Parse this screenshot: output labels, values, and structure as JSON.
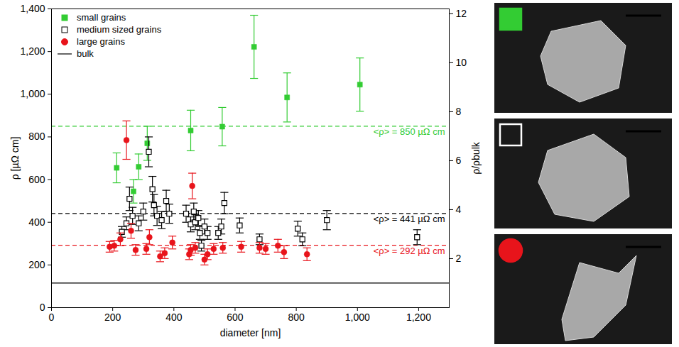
{
  "chart_data": {
    "type": "scatter",
    "xlabel": "diameter [nm]",
    "ylabel": "ρ [µΩ cm]",
    "y2label": "ρ/ρbulk",
    "xlim": [
      0,
      1300
    ],
    "xticks": [
      0,
      200,
      400,
      600,
      800,
      1000,
      1200
    ],
    "ylim": [
      0,
      1400
    ],
    "yticks": [
      0,
      200,
      400,
      600,
      800,
      1000,
      1200,
      1400
    ],
    "y2lim": [
      0,
      12.2
    ],
    "y2ticks": [
      2,
      4,
      6,
      8,
      10,
      12
    ],
    "legend": "top-left",
    "series": [
      {
        "name": "small grains",
        "color": "#33cc33",
        "marker": "square",
        "x": [
          213,
          268,
          285,
          313,
          455,
          558,
          662,
          770,
          1008
        ],
        "values": [
          655,
          545,
          660,
          770,
          830,
          848,
          1222,
          985,
          1045
        ],
        "error": [
          70,
          55,
          60,
          80,
          95,
          90,
          148,
          115,
          125
        ]
      },
      {
        "name": "medium sized grains",
        "color": "#000000",
        "marker": "open square",
        "x": [
          230,
          245,
          255,
          265,
          285,
          300,
          318,
          330,
          335,
          345,
          360,
          375,
          385,
          440,
          455,
          465,
          470,
          480,
          485,
          490,
          500,
          510,
          545,
          555,
          565,
          615,
          680,
          805,
          820,
          900,
          1195
        ],
        "values": [
          355,
          395,
          510,
          430,
          395,
          450,
          730,
          555,
          480,
          430,
          410,
          500,
          440,
          440,
          390,
          450,
          400,
          420,
          350,
          290,
          380,
          350,
          350,
          380,
          490,
          385,
          320,
          370,
          320,
          410,
          330
        ],
        "error": [
          25,
          30,
          55,
          40,
          35,
          40,
          70,
          60,
          50,
          45,
          40,
          50,
          45,
          40,
          35,
          40,
          35,
          35,
          30,
          25,
          35,
          30,
          30,
          35,
          50,
          35,
          25,
          35,
          30,
          45,
          35
        ]
      },
      {
        "name": "large grains",
        "color": "#e8141b",
        "marker": "circle",
        "x": [
          190,
          205,
          225,
          245,
          260,
          275,
          310,
          320,
          355,
          370,
          395,
          450,
          455,
          460,
          470,
          500,
          510,
          530,
          560,
          620,
          680,
          700,
          740,
          760,
          835
        ],
        "values": [
          285,
          290,
          320,
          785,
          360,
          270,
          275,
          330,
          240,
          255,
          305,
          250,
          270,
          570,
          280,
          225,
          250,
          275,
          280,
          285,
          280,
          275,
          290,
          260,
          250
        ],
        "error": [
          25,
          25,
          30,
          90,
          35,
          25,
          25,
          35,
          25,
          25,
          30,
          25,
          25,
          60,
          25,
          25,
          25,
          25,
          25,
          25,
          25,
          25,
          30,
          30,
          30
        ]
      },
      {
        "name": "bulk",
        "type": "line",
        "color": "#000000",
        "line_style": "solid",
        "value": 115
      }
    ],
    "annotations": [
      {
        "text": "<ρ> = 850 µΩ cm",
        "value": 850,
        "color": "#33cc33",
        "line_style": "dashed"
      },
      {
        "text": "<ρ> = 441 µΩ cm",
        "value": 441,
        "color": "#000000",
        "line_style": "dashed"
      },
      {
        "text": "<ρ> = 292 µΩ cm",
        "value": 292,
        "color": "#e8141b",
        "line_style": "dashed"
      }
    ]
  }
}
